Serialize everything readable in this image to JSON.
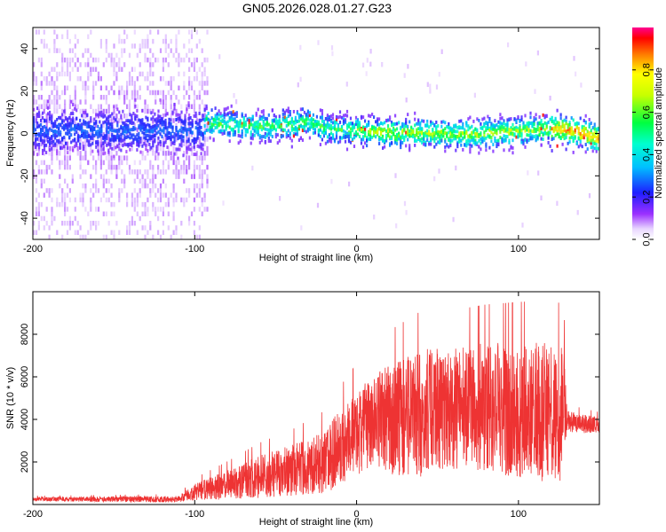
{
  "title": "GN05.2026.028.01.27.G23",
  "chart_data": [
    {
      "type": "heatmap",
      "name": "spectrogram",
      "xlabel": "Height of straight line (km)",
      "ylabel": "Frequency (Hz)",
      "xlim": [
        -200,
        150
      ],
      "ylim": [
        -50,
        50
      ],
      "x_ticks": [
        -200,
        -100,
        0,
        100
      ],
      "x_tick_labels": [
        "-200",
        "-100",
        "0",
        "100"
      ],
      "y_ticks": [
        -40,
        -20,
        0,
        20,
        40
      ],
      "y_tick_labels": [
        "-40",
        "-20",
        "0",
        "20",
        "40"
      ],
      "ridge": {
        "x": [
          -95,
          -80,
          -60,
          -40,
          -30,
          -20,
          0,
          20,
          40,
          60,
          80,
          100,
          120,
          135,
          150
        ],
        "y": [
          6,
          5,
          4,
          5,
          6,
          3,
          2,
          1,
          1,
          0,
          1,
          2,
          3,
          2,
          -2
        ]
      },
      "colorbar": {
        "label": "Normalized spectral amplitude",
        "range": [
          0,
          1
        ],
        "ticks": [
          0.0,
          0.2,
          0.4,
          0.6,
          0.8
        ],
        "tick_labels": [
          "0.0",
          "0.2",
          "0.4",
          "0.6",
          "0.8"
        ]
      }
    },
    {
      "type": "line",
      "name": "snr",
      "xlabel": "Height of straight line (km)",
      "ylabel": "SNR (10 * v/v)",
      "xlim": [
        -200,
        150
      ],
      "ylim": [
        0,
        10000
      ],
      "x_ticks": [
        -200,
        -100,
        0,
        100
      ],
      "x_tick_labels": [
        "-200",
        "-100",
        "0",
        "100"
      ],
      "y_ticks": [
        2000,
        4000,
        6000,
        8000
      ],
      "y_tick_labels": [
        "2000",
        "4000",
        "6000",
        "8000"
      ],
      "color": "#ee3333",
      "envelope": {
        "x": [
          -200,
          -110,
          -100,
          -80,
          -60,
          -40,
          -20,
          -10,
          0,
          20,
          40,
          60,
          80,
          100,
          120,
          128,
          130,
          150
        ],
        "mean": [
          250,
          250,
          600,
          900,
          1300,
          1600,
          2000,
          2700,
          3400,
          4000,
          4300,
          4500,
          4600,
          4400,
          4300,
          4300,
          3900,
          3700
        ],
        "amp": [
          100,
          150,
          400,
          700,
          1000,
          1200,
          1500,
          1800,
          2000,
          2600,
          3000,
          2900,
          3000,
          3200,
          3300,
          3200,
          500,
          400
        ]
      }
    }
  ]
}
